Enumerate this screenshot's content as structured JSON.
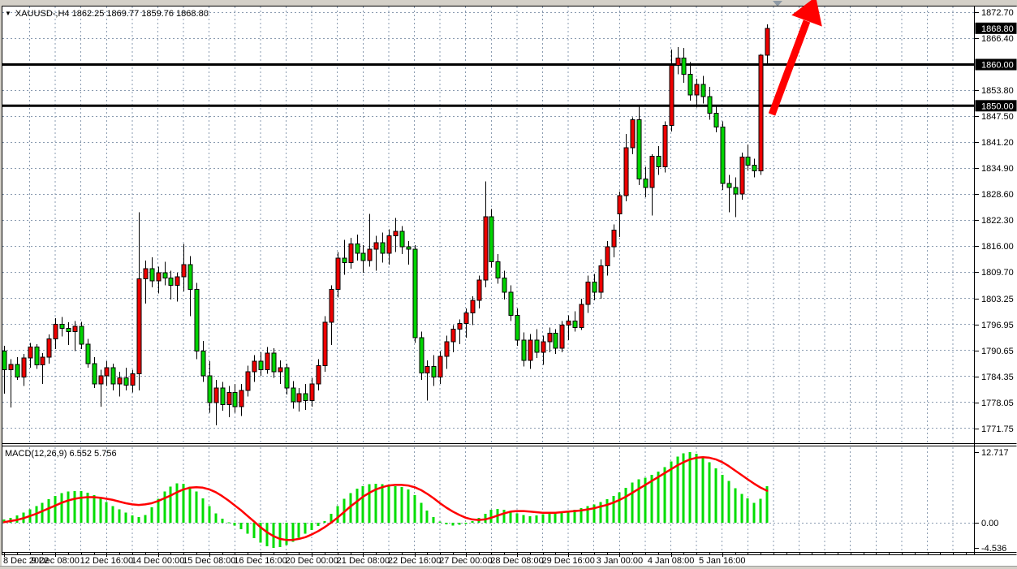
{
  "header": {
    "dropdown_icon": "▼",
    "symbol_line": "XAUUSD-,H4 1862.25 1869.77 1859.76 1868.80"
  },
  "colors": {
    "candle_up": "#ee0000",
    "candle_down": "#00d400",
    "candle_outline": "#000000",
    "wick": "#000000",
    "grid": "#8a9bb0",
    "level_line": "#000000",
    "macd_histogram": "#00dd00",
    "macd_signal": "#ff0000",
    "arrow": "#ff0000",
    "badge_bg": "#000000",
    "badge_text": "#ffffff",
    "axis_text": "#000000"
  },
  "chart_data": {
    "type": "candlestick",
    "symbol": "XAUUSD",
    "timeframe": "H4",
    "current_bar": {
      "open": 1862.25,
      "high": 1869.77,
      "low": 1859.76,
      "close": 1868.8
    },
    "price_axis_ticks": [
      1872.7,
      1866.4,
      1853.8,
      1847.5,
      1841.2,
      1834.9,
      1828.6,
      1822.3,
      1816.0,
      1809.7,
      1803.25,
      1796.95,
      1790.65,
      1784.35,
      1778.05,
      1771.75
    ],
    "price_badges": [
      {
        "text": "1868.80",
        "price": 1868.8,
        "kind": "current-price"
      },
      {
        "text": "1860.00",
        "price": 1860.0,
        "kind": "level"
      },
      {
        "text": "1850.00",
        "price": 1850.0,
        "kind": "level"
      }
    ],
    "level_lines": [
      1860.0,
      1850.0
    ],
    "time_labels": [
      {
        "text": "8 Dec 2022",
        "bar": 0
      },
      {
        "text": "9 Dec 08:00",
        "bar": 8
      },
      {
        "text": "12 Dec 16:00",
        "bar": 16
      },
      {
        "text": "14 Dec 00:00",
        "bar": 24
      },
      {
        "text": "15 Dec 08:00",
        "bar": 32
      },
      {
        "text": "16 Dec 16:00",
        "bar": 40
      },
      {
        "text": "20 Dec 00:00",
        "bar": 48
      },
      {
        "text": "21 Dec 08:00",
        "bar": 56
      },
      {
        "text": "22 Dec 16:00",
        "bar": 64
      },
      {
        "text": "27 Dec 00:00",
        "bar": 72
      },
      {
        "text": "28 Dec 08:00",
        "bar": 80
      },
      {
        "text": "29 Dec 16:00",
        "bar": 88
      },
      {
        "text": "3 Jan 00:00",
        "bar": 96
      },
      {
        "text": "4 Jan 08:00",
        "bar": 104
      },
      {
        "text": "5 Jan 16:00",
        "bar": 112
      }
    ],
    "candles": [
      [
        1790.5,
        1791.8,
        1780.2,
        1786.0
      ],
      [
        1786.0,
        1788.5,
        1776.8,
        1787.3
      ],
      [
        1787.3,
        1789.0,
        1783.5,
        1784.2
      ],
      [
        1784.2,
        1789.8,
        1782.0,
        1788.8
      ],
      [
        1788.8,
        1792.5,
        1786.5,
        1791.5
      ],
      [
        1791.5,
        1792.2,
        1786.2,
        1787.2
      ],
      [
        1787.2,
        1790.0,
        1782.5,
        1789.0
      ],
      [
        1789.0,
        1794.5,
        1787.5,
        1793.5
      ],
      [
        1793.5,
        1798.5,
        1791.0,
        1797.0
      ],
      [
        1797.0,
        1798.8,
        1794.0,
        1796.0
      ],
      [
        1796.0,
        1797.5,
        1792.0,
        1795.2
      ],
      [
        1795.2,
        1797.8,
        1790.5,
        1796.5
      ],
      [
        1796.5,
        1797.6,
        1791.0,
        1792.2
      ],
      [
        1792.2,
        1793.5,
        1786.5,
        1787.5
      ],
      [
        1787.5,
        1789.0,
        1781.5,
        1782.5
      ],
      [
        1782.5,
        1786.0,
        1777.0,
        1784.5
      ],
      [
        1784.5,
        1788.0,
        1782.0,
        1786.5
      ],
      [
        1786.5,
        1787.5,
        1781.0,
        1782.5
      ],
      [
        1782.5,
        1785.5,
        1779.5,
        1784.0
      ],
      [
        1784.0,
        1786.5,
        1781.0,
        1782.2
      ],
      [
        1782.2,
        1786.0,
        1780.5,
        1785.0
      ],
      [
        1785.0,
        1824.2,
        1781.0,
        1808.0
      ],
      [
        1808.0,
        1812.5,
        1802.0,
        1810.5
      ],
      [
        1810.5,
        1813.2,
        1806.0,
        1807.5
      ],
      [
        1807.5,
        1811.0,
        1804.5,
        1809.5
      ],
      [
        1809.5,
        1812.2,
        1806.5,
        1808.2
      ],
      [
        1808.2,
        1810.0,
        1803.0,
        1806.5
      ],
      [
        1806.5,
        1809.5,
        1802.5,
        1808.5
      ],
      [
        1808.5,
        1816.5,
        1805.0,
        1811.5
      ],
      [
        1811.5,
        1813.5,
        1799.0,
        1805.5
      ],
      [
        1805.5,
        1807.0,
        1788.5,
        1790.5
      ],
      [
        1790.5,
        1793.0,
        1783.0,
        1784.5
      ],
      [
        1784.5,
        1788.0,
        1775.5,
        1778.0
      ],
      [
        1778.0,
        1783.5,
        1772.5,
        1781.5
      ],
      [
        1781.5,
        1783.0,
        1776.0,
        1777.5
      ],
      [
        1777.5,
        1782.0,
        1774.5,
        1780.5
      ],
      [
        1780.5,
        1782.5,
        1775.5,
        1777.0
      ],
      [
        1777.0,
        1782.5,
        1774.8,
        1781.0
      ],
      [
        1781.0,
        1787.0,
        1779.5,
        1785.5
      ],
      [
        1785.5,
        1789.5,
        1783.0,
        1788.0
      ],
      [
        1788.0,
        1790.2,
        1784.5,
        1786.0
      ],
      [
        1786.0,
        1791.5,
        1785.0,
        1790.0
      ],
      [
        1790.0,
        1791.2,
        1784.0,
        1785.5
      ],
      [
        1785.5,
        1788.2,
        1782.5,
        1786.5
      ],
      [
        1786.5,
        1787.5,
        1780.0,
        1781.5
      ],
      [
        1781.5,
        1783.2,
        1776.5,
        1778.2
      ],
      [
        1778.2,
        1781.5,
        1775.8,
        1780.2
      ],
      [
        1780.2,
        1782.5,
        1776.2,
        1778.5
      ],
      [
        1778.5,
        1784.0,
        1777.0,
        1782.5
      ],
      [
        1782.5,
        1788.5,
        1781.0,
        1787.0
      ],
      [
        1787.0,
        1799.0,
        1785.5,
        1797.5
      ],
      [
        1797.5,
        1806.5,
        1792.0,
        1805.5
      ],
      [
        1805.5,
        1814.5,
        1803.5,
        1813.0
      ],
      [
        1813.0,
        1817.5,
        1809.0,
        1812.0
      ],
      [
        1812.0,
        1818.0,
        1810.5,
        1816.5
      ],
      [
        1816.5,
        1818.8,
        1812.5,
        1814.2
      ],
      [
        1814.2,
        1816.2,
        1809.5,
        1812.5
      ],
      [
        1812.5,
        1823.8,
        1811.0,
        1815.2
      ],
      [
        1815.2,
        1818.5,
        1810.0,
        1816.8
      ],
      [
        1816.8,
        1819.2,
        1812.0,
        1814.2
      ],
      [
        1814.2,
        1820.0,
        1811.5,
        1818.5
      ],
      [
        1818.5,
        1822.8,
        1814.5,
        1819.5
      ],
      [
        1819.5,
        1820.8,
        1814.0,
        1815.8
      ],
      [
        1815.8,
        1817.2,
        1811.5,
        1815.2
      ],
      [
        1815.2,
        1816.2,
        1792.5,
        1793.8
      ],
      [
        1793.8,
        1795.2,
        1783.5,
        1785.2
      ],
      [
        1785.2,
        1788.2,
        1778.5,
        1786.8
      ],
      [
        1786.8,
        1789.5,
        1782.0,
        1784.2
      ],
      [
        1784.2,
        1790.5,
        1782.5,
        1789.2
      ],
      [
        1789.2,
        1794.2,
        1786.2,
        1792.8
      ],
      [
        1792.8,
        1796.8,
        1790.2,
        1795.8
      ],
      [
        1795.8,
        1798.2,
        1792.2,
        1797.2
      ],
      [
        1797.2,
        1800.8,
        1793.8,
        1799.8
      ],
      [
        1799.8,
        1803.8,
        1796.8,
        1802.8
      ],
      [
        1802.8,
        1808.8,
        1800.8,
        1807.7
      ],
      [
        1807.7,
        1831.7,
        1806.0,
        1823.1
      ],
      [
        1823.1,
        1825.0,
        1810.8,
        1812.2
      ],
      [
        1812.2,
        1814.0,
        1806.8,
        1808.2
      ],
      [
        1808.2,
        1810.0,
        1803.0,
        1804.8
      ],
      [
        1804.8,
        1806.5,
        1797.8,
        1799.2
      ],
      [
        1799.2,
        1800.8,
        1791.8,
        1793.2
      ],
      [
        1793.2,
        1795.0,
        1786.8,
        1788.2
      ],
      [
        1788.2,
        1794.6,
        1786.2,
        1793.2
      ],
      [
        1793.2,
        1795.8,
        1788.8,
        1790.2
      ],
      [
        1790.2,
        1794.2,
        1787.2,
        1792.8
      ],
      [
        1792.8,
        1796.2,
        1790.2,
        1794.8
      ],
      [
        1794.8,
        1795.8,
        1789.8,
        1791.2
      ],
      [
        1791.2,
        1797.8,
        1790.2,
        1796.8
      ],
      [
        1796.8,
        1799.2,
        1793.2,
        1797.8
      ],
      [
        1797.8,
        1800.2,
        1795.2,
        1796.2
      ],
      [
        1796.2,
        1803.2,
        1795.6,
        1801.8
      ],
      [
        1801.8,
        1808.8,
        1799.8,
        1807.2
      ],
      [
        1807.2,
        1809.2,
        1802.8,
        1804.8
      ],
      [
        1804.8,
        1812.8,
        1803.2,
        1811.2
      ],
      [
        1811.2,
        1817.2,
        1808.8,
        1815.8
      ],
      [
        1815.8,
        1821.2,
        1813.2,
        1819.8
      ],
      [
        1823.8,
        1829.2,
        1818.2,
        1828.2
      ],
      [
        1828.2,
        1843.2,
        1826.8,
        1839.8
      ],
      [
        1839.8,
        1847.2,
        1838.2,
        1846.6
      ],
      [
        1846.6,
        1849.8,
        1830.8,
        1832.2
      ],
      [
        1832.2,
        1835.2,
        1827.8,
        1830.2
      ],
      [
        1830.2,
        1838.2,
        1823.4,
        1837.8
      ],
      [
        1837.8,
        1840.2,
        1833.2,
        1835.2
      ],
      [
        1835.2,
        1846.2,
        1833.8,
        1845.2
      ],
      [
        1845.2,
        1863.6,
        1843.8,
        1859.8
      ],
      [
        1859.8,
        1864.2,
        1857.6,
        1861.6
      ],
      [
        1861.6,
        1864.0,
        1855.6,
        1857.6
      ],
      [
        1857.6,
        1860.6,
        1851.2,
        1852.6
      ],
      [
        1852.6,
        1856.6,
        1849.6,
        1855.2
      ],
      [
        1855.2,
        1857.2,
        1850.6,
        1852.2
      ],
      [
        1852.2,
        1854.6,
        1846.6,
        1848.2
      ],
      [
        1848.2,
        1849.8,
        1843.6,
        1844.8
      ],
      [
        1844.8,
        1846.2,
        1829.6,
        1831.2
      ],
      [
        1831.2,
        1833.2,
        1824.2,
        1830.2
      ],
      [
        1830.2,
        1832.6,
        1823.0,
        1828.6
      ],
      [
        1828.6,
        1838.6,
        1827.2,
        1837.6
      ],
      [
        1837.6,
        1840.6,
        1834.2,
        1835.6
      ],
      [
        1835.6,
        1837.2,
        1832.6,
        1834.2
      ],
      [
        1834.2,
        1862.6,
        1833.2,
        1862.3
      ],
      [
        1862.25,
        1869.77,
        1859.76,
        1868.8
      ]
    ],
    "macd": {
      "label": "MACD(12,26,9) 6.552 5.756",
      "current_values": [
        6.552,
        5.756
      ],
      "axis_ticks": [
        {
          "text": "12.717",
          "value": 12.717
        },
        {
          "text": "0.00",
          "value": 0
        },
        {
          "text": "-4.536",
          "value": -4.536
        }
      ],
      "histogram": [
        0.6,
        0.9,
        1.3,
        1.8,
        2.4,
        3.0,
        3.6,
        4.2,
        4.8,
        5.3,
        5.6,
        5.7,
        5.7,
        5.4,
        5.0,
        4.4,
        3.7,
        3.0,
        2.4,
        1.8,
        1.3,
        1.0,
        1.4,
        2.8,
        4.3,
        5.6,
        6.5,
        7.1,
        7.0,
        6.5,
        5.6,
        4.4,
        3.0,
        1.7,
        0.7,
        0.1,
        -0.5,
        -1.2,
        -2.0,
        -2.8,
        -3.6,
        -4.2,
        -4.5,
        -4.4,
        -4.0,
        -3.4,
        -2.7,
        -2.0,
        -1.3,
        -0.6,
        0.3,
        1.6,
        3.0,
        4.3,
        5.3,
        6.1,
        6.6,
        6.9,
        7.0,
        6.9,
        6.7,
        6.6,
        6.4,
        6.0,
        5.0,
        3.6,
        2.2,
        1.0,
        0.2,
        -0.3,
        -0.5,
        -0.4,
        -0.2,
        0.3,
        0.9,
        1.6,
        2.3,
        2.5,
        2.3,
        2.0,
        1.7,
        1.4,
        1.2,
        1.3,
        1.5,
        1.7,
        1.9,
        2.0,
        2.1,
        2.3,
        2.6,
        3.0,
        3.3,
        3.7,
        4.2,
        4.8,
        5.5,
        6.3,
        7.2,
        7.8,
        8.1,
        8.6,
        9.2,
        10.0,
        11.0,
        11.9,
        12.5,
        12.7,
        12.4,
        11.8,
        10.9,
        9.8,
        8.6,
        7.5,
        6.2,
        5.2,
        4.4,
        3.6,
        4.3,
        6.552
      ],
      "signal": [
        0.1,
        0.3,
        0.5,
        0.8,
        1.2,
        1.6,
        2.1,
        2.6,
        3.1,
        3.6,
        4.0,
        4.3,
        4.5,
        4.6,
        4.6,
        4.5,
        4.3,
        4.1,
        3.8,
        3.5,
        3.3,
        3.2,
        3.3,
        3.5,
        3.9,
        4.4,
        4.9,
        5.5,
        6.0,
        6.3,
        6.4,
        6.3,
        6.0,
        5.5,
        4.8,
        4.0,
        3.1,
        2.2,
        1.2,
        0.2,
        -0.8,
        -1.7,
        -2.4,
        -2.9,
        -3.1,
        -3.1,
        -2.9,
        -2.6,
        -2.1,
        -1.5,
        -0.8,
        0.0,
        0.9,
        1.9,
        2.9,
        3.8,
        4.7,
        5.4,
        6.0,
        6.4,
        6.7,
        6.8,
        6.8,
        6.7,
        6.4,
        5.9,
        5.2,
        4.4,
        3.5,
        2.7,
        2.0,
        1.4,
        0.9,
        0.6,
        0.5,
        0.6,
        0.9,
        1.3,
        1.7,
        2.0,
        2.1,
        2.1,
        2.0,
        1.9,
        1.8,
        1.8,
        1.8,
        1.9,
        2.0,
        2.1,
        2.2,
        2.4,
        2.6,
        2.9,
        3.2,
        3.6,
        4.1,
        4.7,
        5.4,
        6.1,
        6.8,
        7.5,
        8.2,
        8.9,
        9.6,
        10.3,
        10.9,
        11.4,
        11.7,
        11.8,
        11.7,
        11.4,
        10.9,
        10.2,
        9.4,
        8.6,
        7.8,
        7.0,
        6.3,
        5.756
      ]
    },
    "annotations": {
      "trend_arrow": {
        "direction": "up",
        "color": "#ff0000"
      }
    }
  }
}
